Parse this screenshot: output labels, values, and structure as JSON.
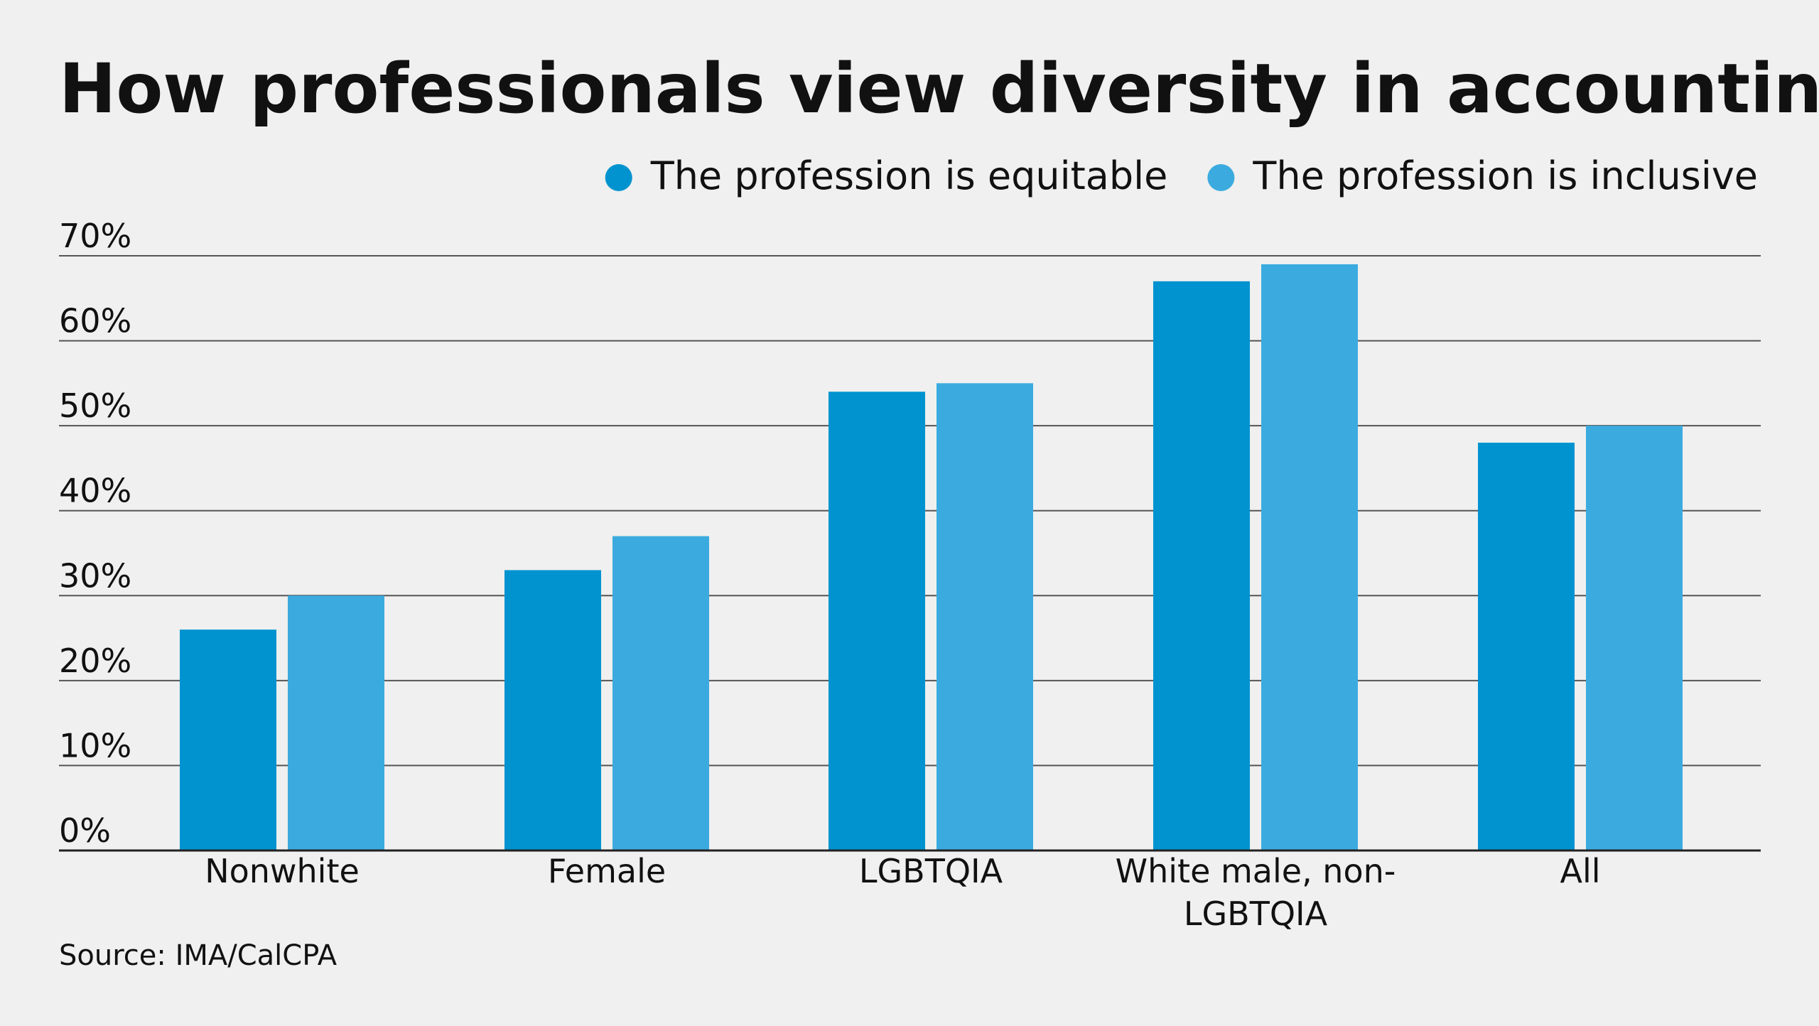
{
  "chart_data": {
    "type": "bar",
    "title": "How professionals view diversity in accounting",
    "categories": [
      "Nonwhite",
      "Female",
      "LGBTQIA",
      "White male, non-LGBTQIA",
      "All"
    ],
    "category_lines": [
      [
        "Nonwhite"
      ],
      [
        "Female"
      ],
      [
        "LGBTQIA"
      ],
      [
        "White male, non-",
        "LGBTQIA"
      ],
      [
        "All"
      ]
    ],
    "series": [
      {
        "name": "The profession is equitable",
        "color": "#0093d0",
        "values": [
          26,
          33,
          54,
          67,
          48
        ]
      },
      {
        "name": "The profession is inclusive",
        "color": "#3babdf",
        "values": [
          30,
          37,
          55,
          69,
          50
        ]
      }
    ],
    "ylim": [
      0,
      70
    ],
    "yticks": [
      "0%",
      "10%",
      "20%",
      "30%",
      "40%",
      "50%",
      "60%",
      "70%"
    ],
    "grid": true,
    "legend": "top-right",
    "source": "Source: IMA/CalCPA"
  }
}
